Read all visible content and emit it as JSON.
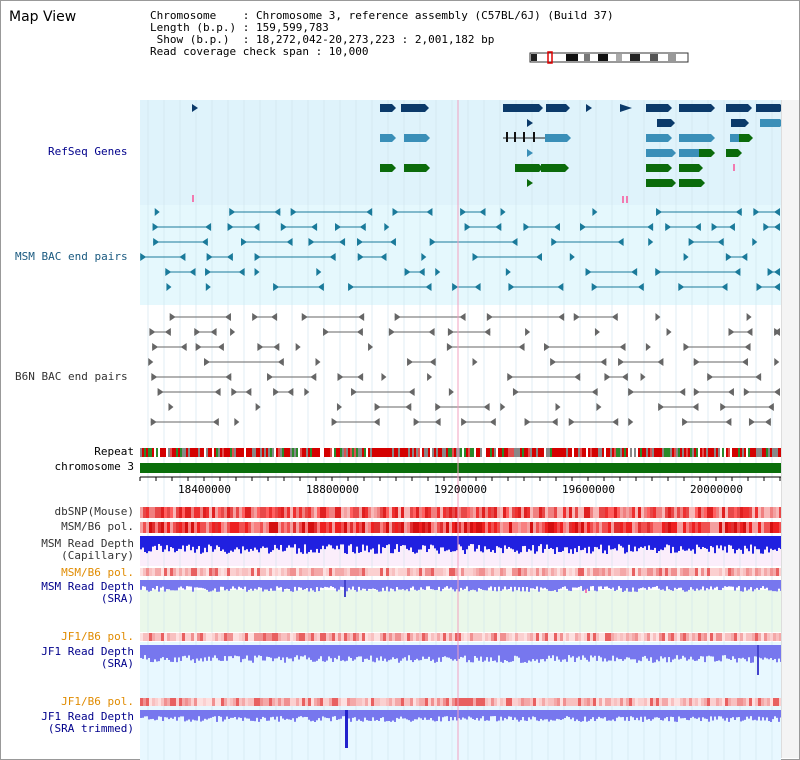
{
  "title": "Map View",
  "info": {
    "line1": "Chromosome    : Chromosome 3, reference assembly (C57BL/6J) (Build 37)",
    "line2": "Length (b.p.) : 159,599,783",
    "line3": " Show (b.p.)  : 18,272,042-20,273,223 : 2,001,182 bp",
    "line4": "Read coverage check span : 10,000"
  },
  "tracks": {
    "refseq": "RefSeq Genes",
    "msm_bac": "MSM BAC end pairs",
    "b6n_bac": "B6N BAC end pairs",
    "repeat": "Repeat",
    "chromosome": "chromosome 3",
    "dbsnp": "dbSNP(Mouse)",
    "msm_pol": "MSM/B6 pol.",
    "msm_depth_cap_1": "MSM Read Depth",
    "msm_depth_cap_2": "(Capillary)",
    "msm_pol2": "MSM/B6 pol.",
    "msm_depth_sra_1": "MSM Read Depth",
    "msm_depth_sra_2": "(SRA)",
    "jf1_pol": "JF1/B6 pol.",
    "jf1_depth_1": "JF1 Read Depth",
    "jf1_depth_2": "(SRA)",
    "jf1_pol2": "JF1/B6 pol.",
    "jf1_trim_1": "JF1 Read Depth",
    "jf1_trim_2": "(SRA trimmed)"
  },
  "axis_ticks": [
    "18400000",
    "18800000",
    "19200000",
    "19600000",
    "20000000"
  ],
  "colors": {
    "refseq_bg": "#dff3fb",
    "msm_bg": "#e5f8fd",
    "b6n_bg": "#ffffff",
    "depth_cap_bg": "#fbeefb",
    "depth_sra_bg": "#eaf8ea",
    "jf1_bg": "#e8f8ff",
    "gene_dark": "#0b3a6a",
    "gene_mid": "#3a8fb8",
    "gene_green": "#0b6b0b",
    "bac_blue": "#1a7a9a",
    "bac_gray": "#666666",
    "chrom_green": "#0a6e0a",
    "depth_blue": "#2020e0",
    "depth_light": "#7777ee",
    "label_blue": "#00008b",
    "label_orange": "#e08b00",
    "label_teal": "#1a5a80"
  }
}
